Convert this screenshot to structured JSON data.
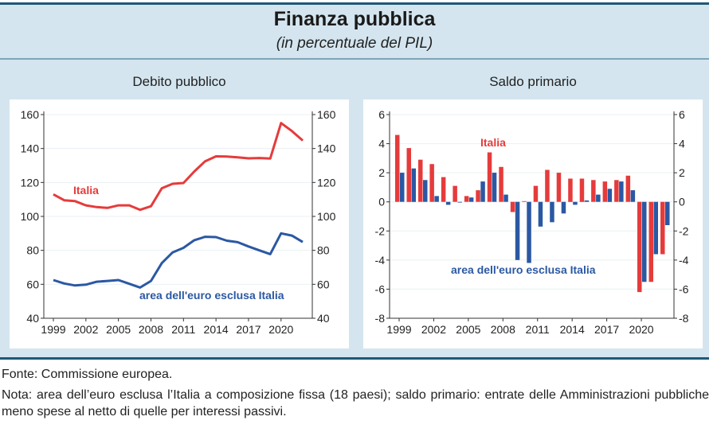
{
  "header": {
    "title": "Finanza pubblica",
    "subtitle": "(in percentuale del PIL)"
  },
  "footer": {
    "source": "Fonte: Commissione europea.",
    "note": "Nota: area dell’euro esclusa l’Italia a composizione fissa (18 paesi); saldo primario: entrate delle Amministrazioni pubbliche meno spese al netto di quelle per interessi passivi."
  },
  "colors": {
    "italia": "#e63b3b",
    "area": "#2b58a3",
    "border": "#1d5877",
    "panel_bg": "#d4e5ef"
  },
  "chart_data": [
    {
      "type": "line",
      "title": "Debito pubblico",
      "xlabel": "",
      "ylabel": "",
      "x": [
        1999,
        2000,
        2001,
        2002,
        2003,
        2004,
        2005,
        2006,
        2007,
        2008,
        2009,
        2010,
        2011,
        2012,
        2013,
        2014,
        2015,
        2016,
        2017,
        2018,
        2019,
        2020,
        2021,
        2022
      ],
      "xticks": [
        "1999",
        "2002",
        "2005",
        "2008",
        "2011",
        "2014",
        "2017",
        "2020"
      ],
      "yticks": [
        "40",
        "60",
        "80",
        "100",
        "120",
        "140",
        "160"
      ],
      "ylim": [
        40,
        160
      ],
      "grid": true,
      "series": [
        {
          "name": "Italia",
          "label": "Italia",
          "color": "#e63b3b",
          "values": [
            113.0,
            109.5,
            109.0,
            106.5,
            105.5,
            105.0,
            106.5,
            106.5,
            103.9,
            106.0,
            116.6,
            119.2,
            119.7,
            126.5,
            132.5,
            135.4,
            135.3,
            134.8,
            134.2,
            134.4,
            134.1,
            155.0,
            150.3,
            144.7
          ]
        },
        {
          "name": "area dell'euro esclusa Italia",
          "label": "area dell'euro esclusa Italia",
          "color": "#2b58a3",
          "values": [
            62.5,
            60.5,
            59.3,
            59.8,
            61.5,
            62.0,
            62.5,
            60.3,
            58.1,
            62.0,
            72.5,
            78.8,
            81.5,
            86.0,
            88.0,
            87.8,
            85.7,
            84.8,
            82.3,
            80.0,
            77.8,
            90.0,
            88.7,
            84.9
          ]
        }
      ]
    },
    {
      "type": "bar",
      "title": "Saldo primario",
      "xlabel": "",
      "ylabel": "",
      "x": [
        1999,
        2000,
        2001,
        2002,
        2003,
        2004,
        2005,
        2006,
        2007,
        2008,
        2009,
        2010,
        2011,
        2012,
        2013,
        2014,
        2015,
        2016,
        2017,
        2018,
        2019,
        2020,
        2021,
        2022
      ],
      "xticks": [
        "1999",
        "2002",
        "2005",
        "2008",
        "2011",
        "2014",
        "2017",
        "2020"
      ],
      "yticks": [
        "-8",
        "-6",
        "-4",
        "-2",
        "0",
        "2",
        "4",
        "6"
      ],
      "ylim": [
        -8,
        6
      ],
      "grid": true,
      "series": [
        {
          "name": "Italia",
          "label": "Italia",
          "color": "#e63b3b",
          "values": [
            4.6,
            3.7,
            2.9,
            2.6,
            1.7,
            1.1,
            0.4,
            0.8,
            3.4,
            2.4,
            -0.7,
            0.05,
            1.1,
            2.2,
            2.0,
            1.6,
            1.6,
            1.5,
            1.4,
            1.5,
            1.8,
            -6.2,
            -5.5,
            -3.6
          ]
        },
        {
          "name": "area dell'euro esclusa Italia",
          "label": "area dell'euro esclusa Italia",
          "color": "#2b58a3",
          "values": [
            2.0,
            2.3,
            1.5,
            0.4,
            -0.2,
            -0.05,
            0.3,
            1.4,
            2.0,
            0.5,
            -4.0,
            -4.2,
            -1.7,
            -1.4,
            -0.8,
            -0.2,
            0.1,
            0.5,
            0.9,
            1.4,
            0.8,
            -5.5,
            -3.6,
            -1.6
          ]
        }
      ]
    }
  ]
}
